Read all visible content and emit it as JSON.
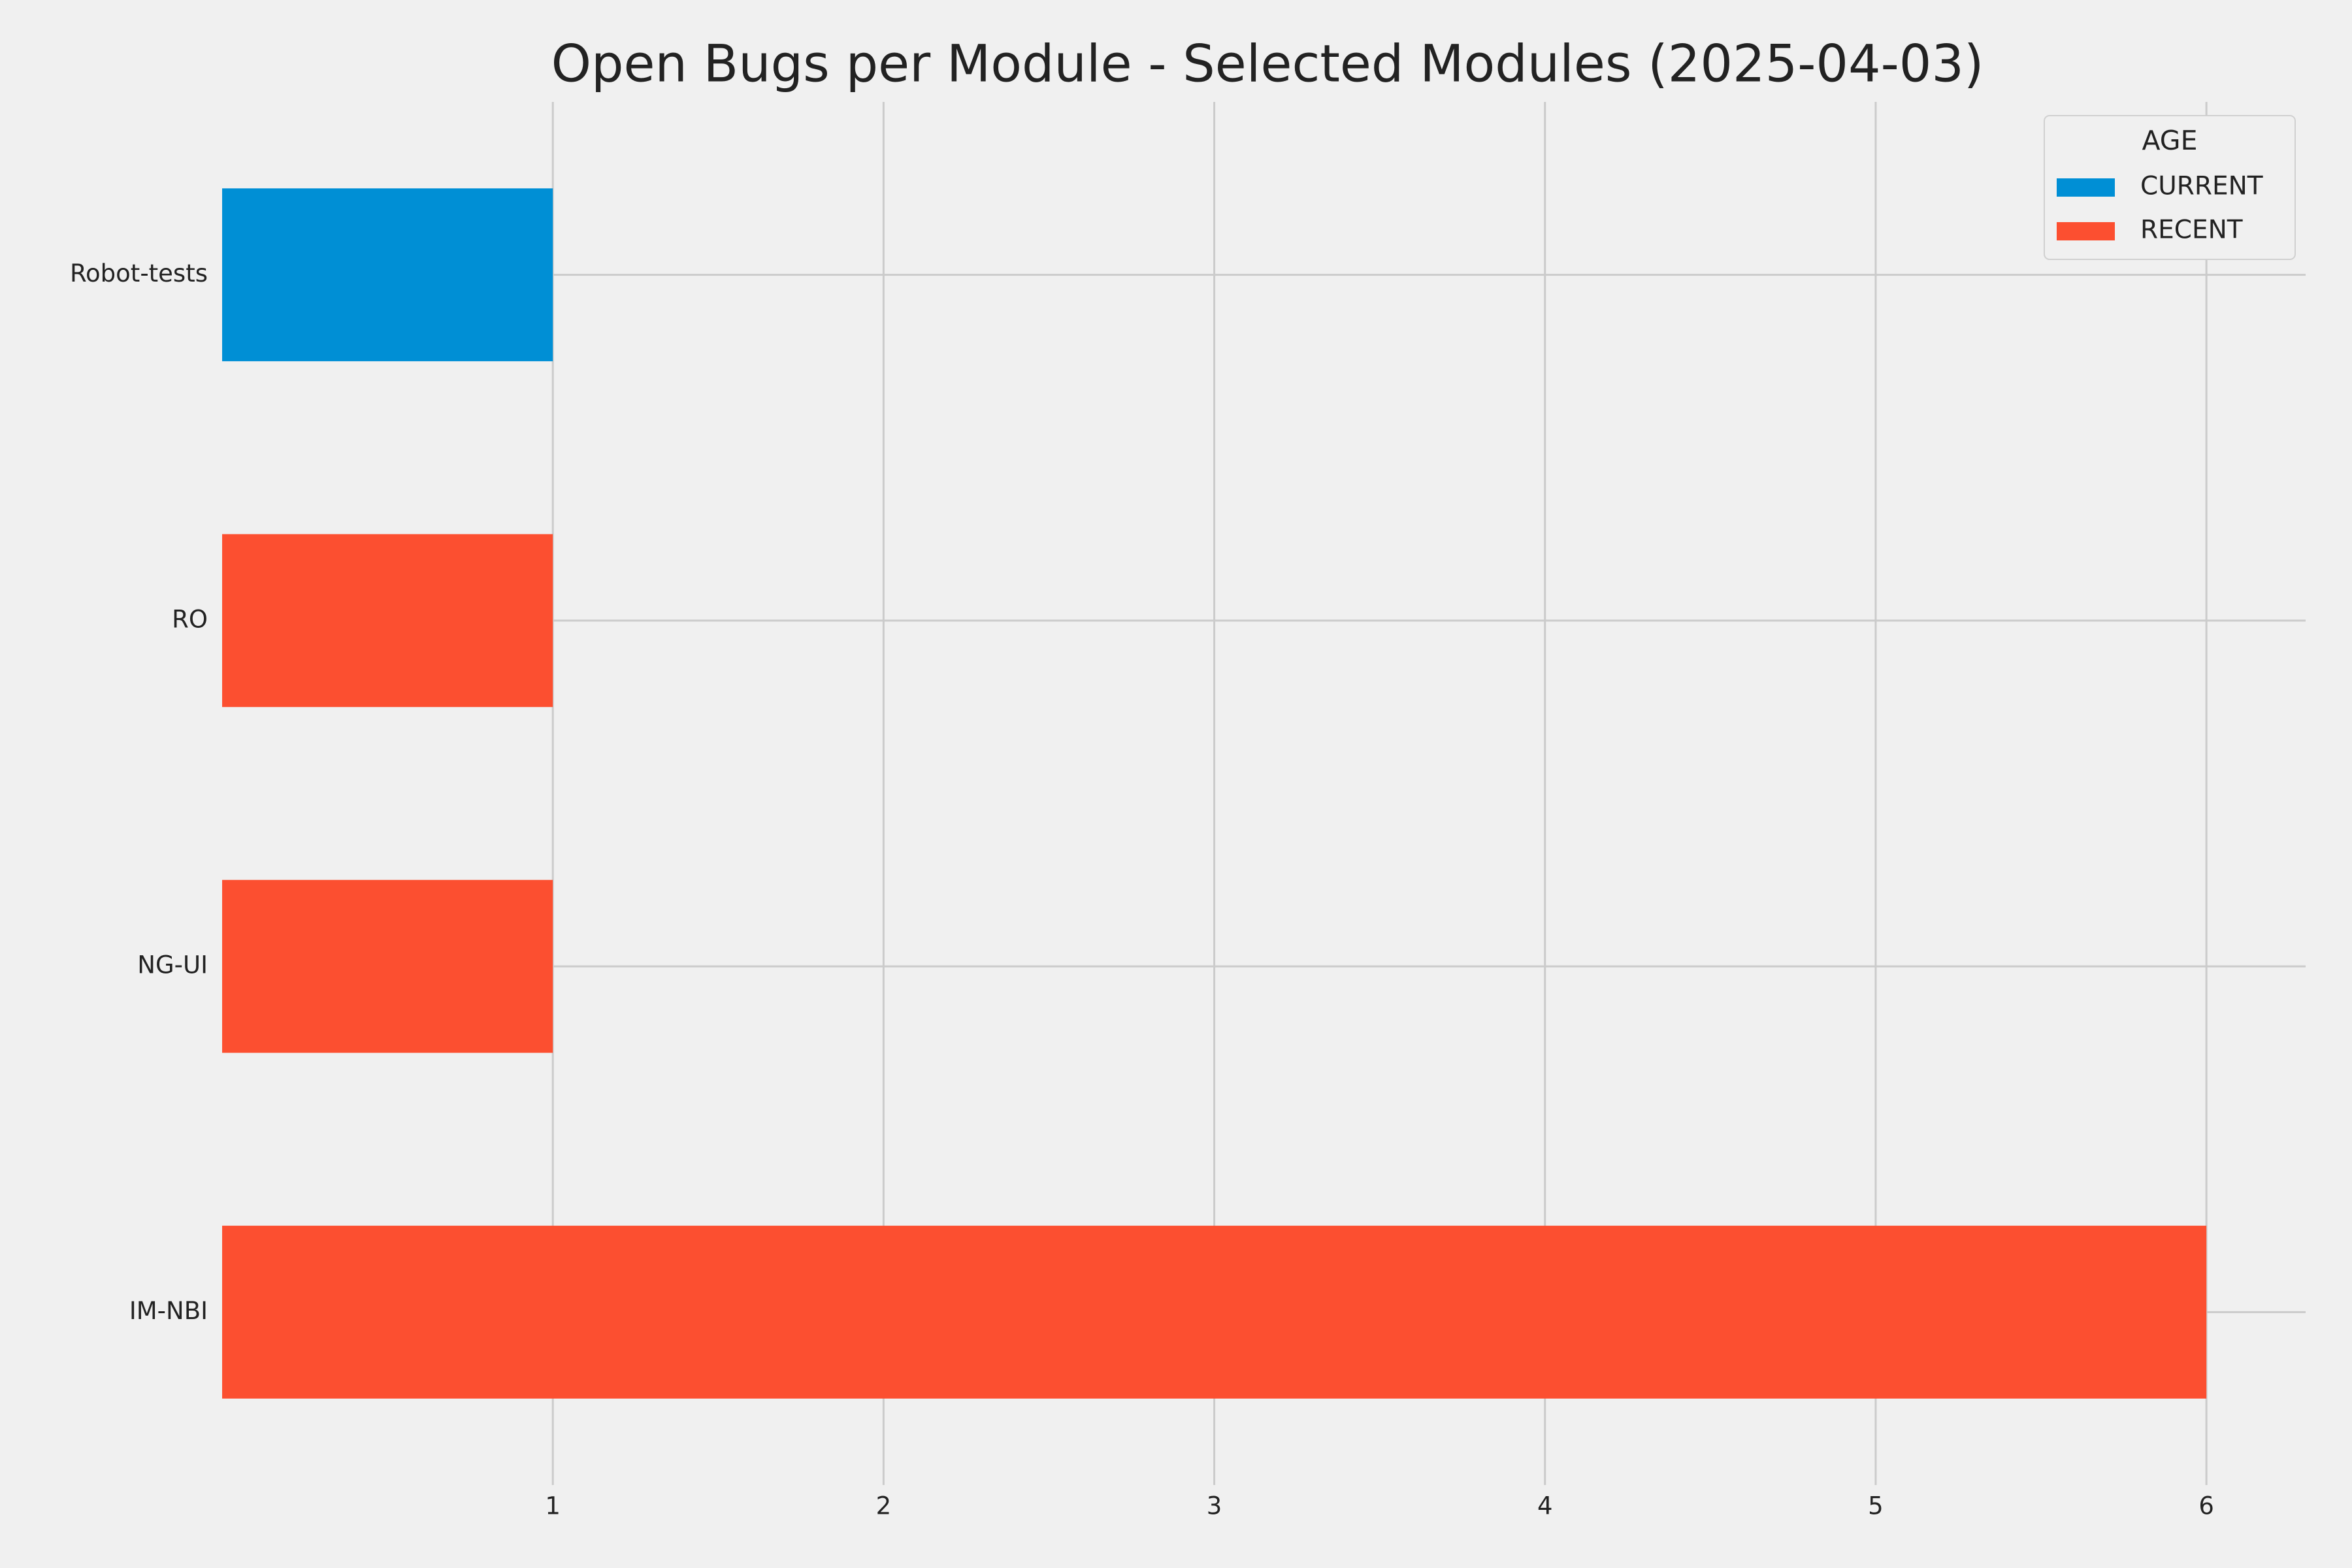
{
  "chart_data": {
    "type": "stacked_barh",
    "title": "Open Bugs per Module - Selected Modules (2025-04-03)",
    "categories": [
      "IM-NBI",
      "NG-UI",
      "RO",
      "Robot-tests"
    ],
    "series": [
      {
        "name": "CURRENT",
        "color": "#008fd5",
        "values": [
          0,
          0,
          0,
          1
        ]
      },
      {
        "name": "RECENT",
        "color": "#fc4f30",
        "values": [
          6,
          1,
          1,
          0
        ]
      }
    ],
    "xlim": [
      0,
      6.3
    ],
    "xticks": [
      1,
      2,
      3,
      4,
      5,
      6
    ],
    "grid": true,
    "legend_title": "AGE",
    "legend_loc": "upper right"
  }
}
